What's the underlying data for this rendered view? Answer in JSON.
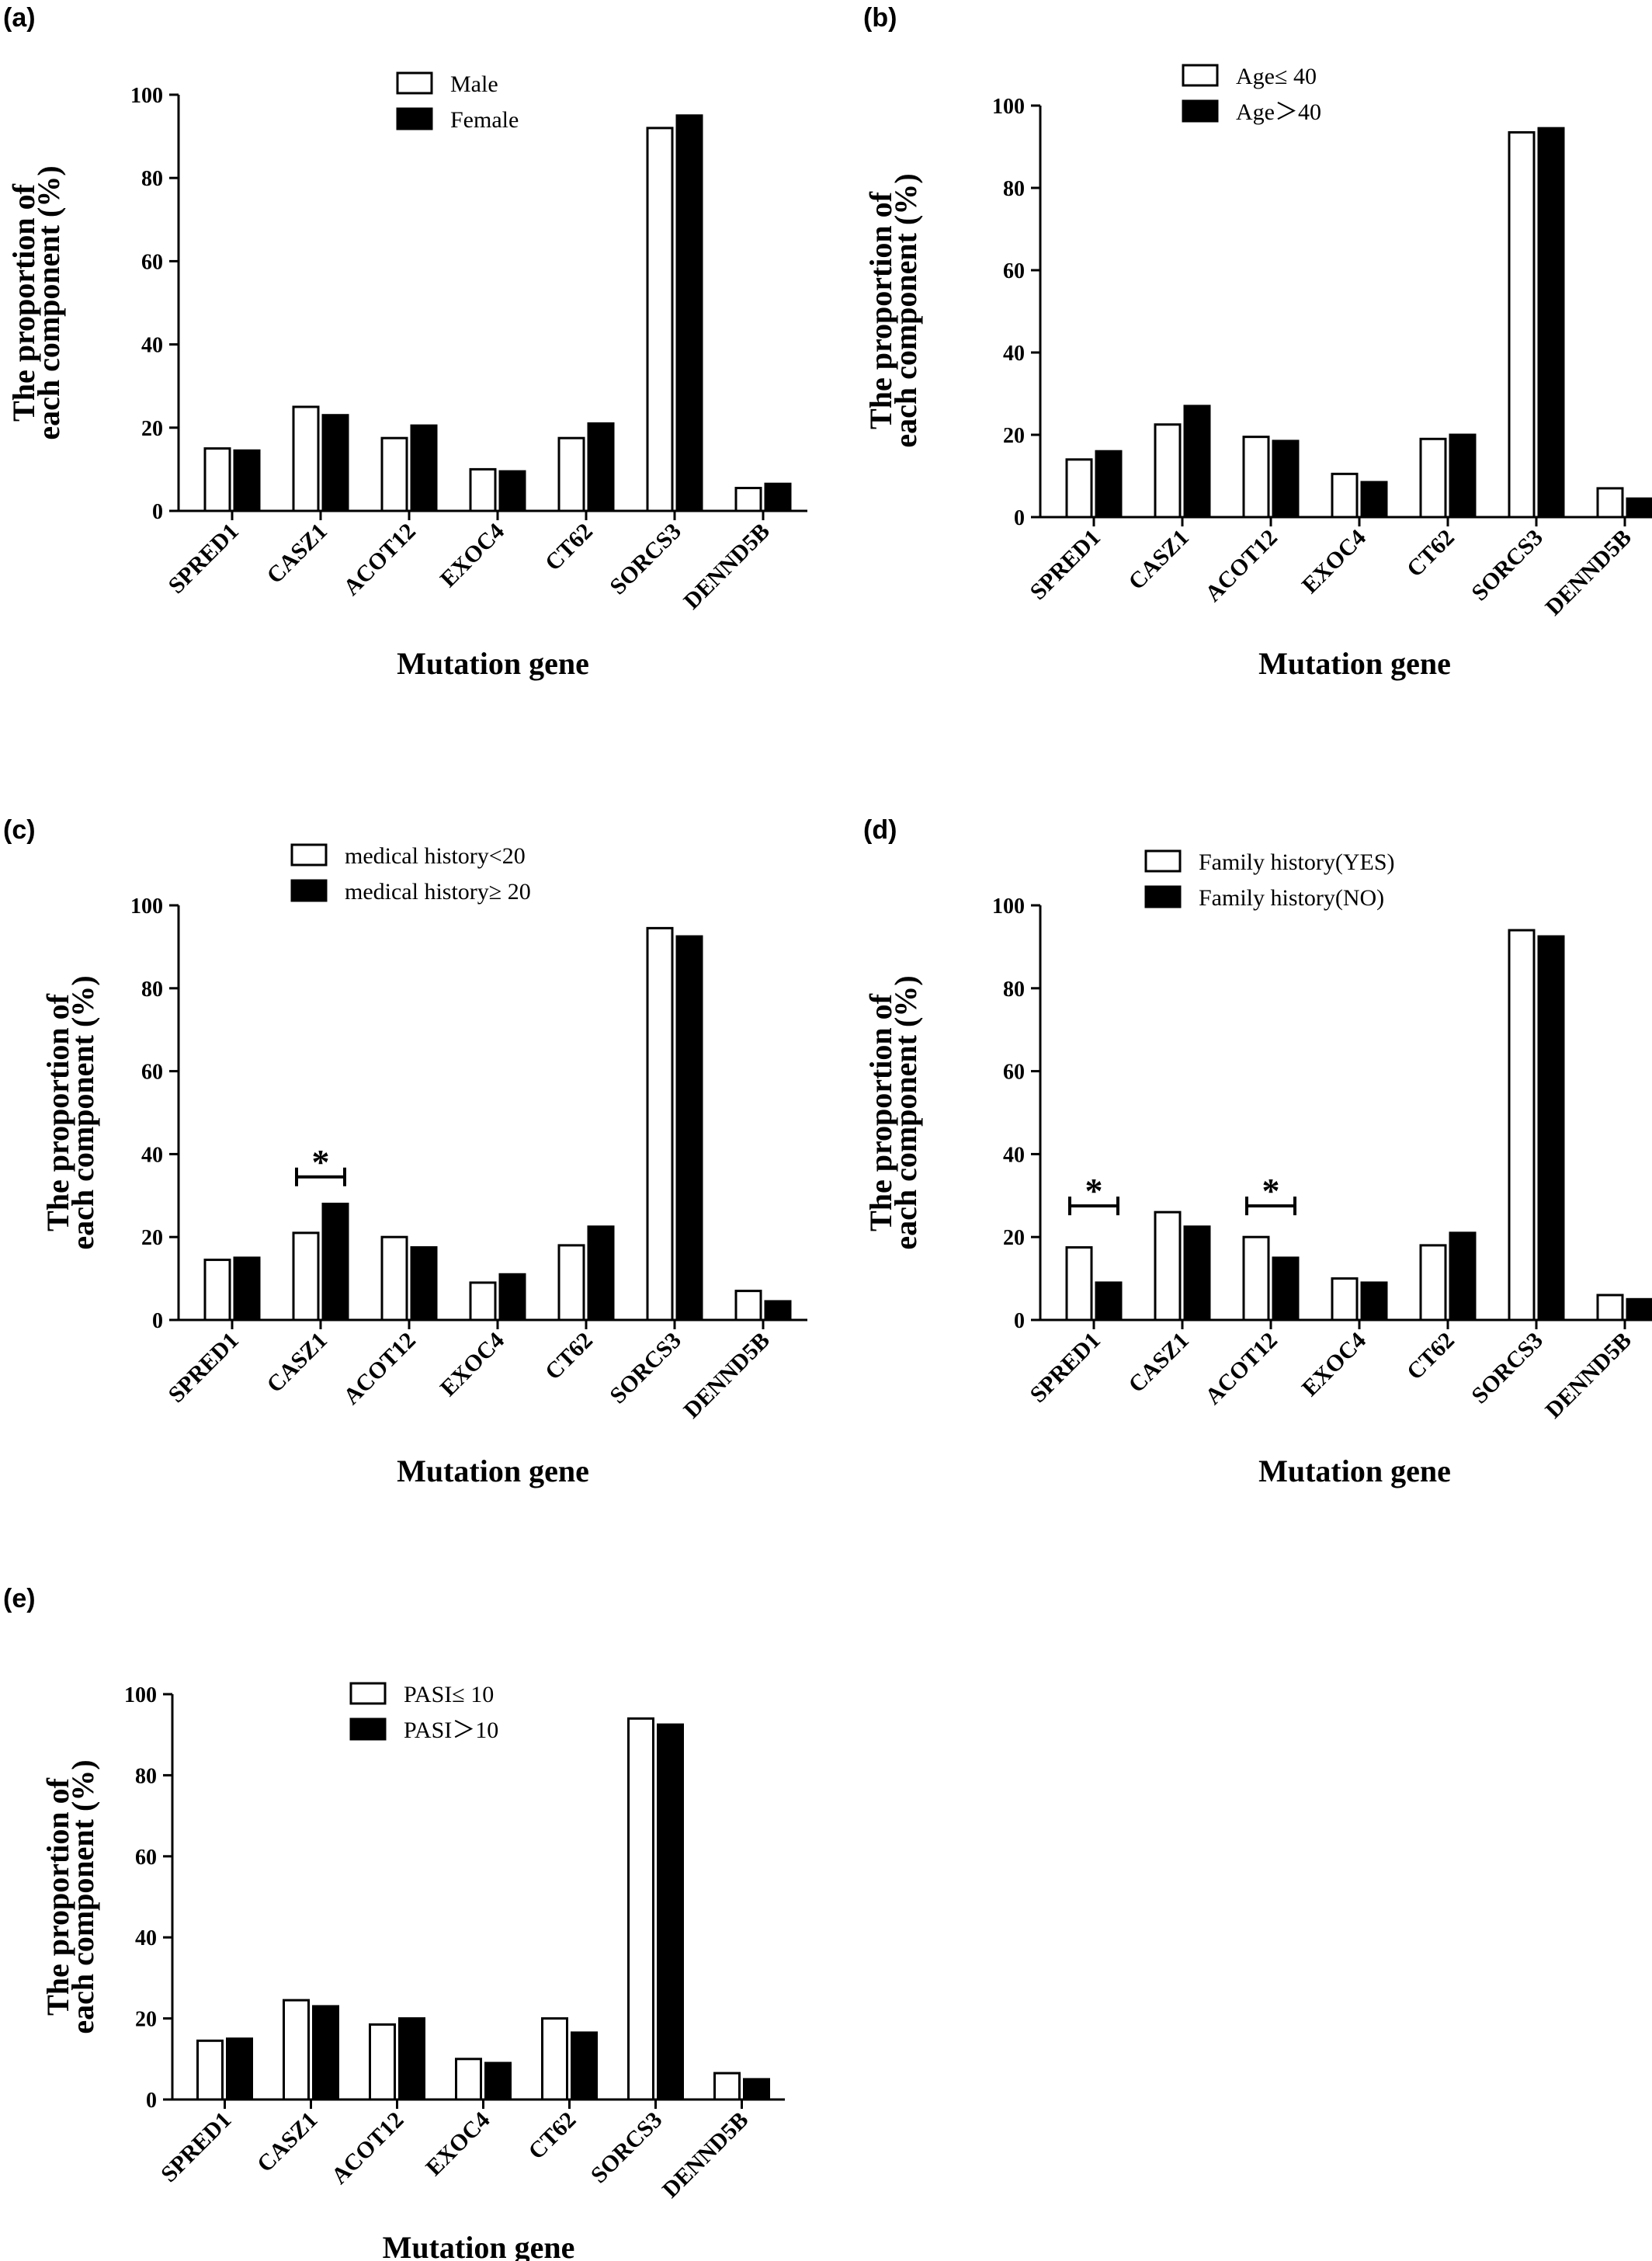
{
  "chart_data": [
    {
      "panel": "(a)",
      "type": "bar",
      "categories": [
        "SPRED1",
        "CASZ1",
        "ACOT12",
        "EXOC4",
        "CT62",
        "SORCS3",
        "DENND5B"
      ],
      "series": [
        {
          "name": "Male",
          "fill": "#ffffff",
          "values": [
            15,
            25,
            17.5,
            10,
            17.5,
            92,
            5.5
          ]
        },
        {
          "name": "Female",
          "fill": "#000000",
          "values": [
            14.5,
            23,
            20.5,
            9.5,
            21,
            95,
            6.5
          ]
        }
      ],
      "ylim": [
        0,
        100
      ],
      "yticks": [
        "0",
        "20",
        "40",
        "60",
        "80",
        "100"
      ],
      "xlabel": "Mutation gene",
      "ylabel_lines": [
        "The proportion of",
        "each component (%)"
      ],
      "legend_position": "top-center",
      "significance": []
    },
    {
      "panel": "(b)",
      "type": "bar",
      "categories": [
        "SPRED1",
        "CASZ1",
        "ACOT12",
        "EXOC4",
        "CT62",
        "SORCS3",
        "DENND5B"
      ],
      "series": [
        {
          "name": "Age≤ 40",
          "fill": "#ffffff",
          "values": [
            14,
            22.5,
            19.5,
            10.5,
            19,
            93.5,
            7
          ]
        },
        {
          "name": "Age＞40",
          "fill": "#000000",
          "values": [
            16,
            27,
            18.5,
            8.5,
            20,
            94.5,
            4.5
          ]
        }
      ],
      "ylim": [
        0,
        100
      ],
      "yticks": [
        "0",
        "20",
        "40",
        "60",
        "80",
        "100"
      ],
      "xlabel": "Mutation gene",
      "ylabel_lines": [
        "The proportion of",
        "each component (%)"
      ],
      "legend_position": "top-center",
      "significance": []
    },
    {
      "panel": "(c)",
      "type": "bar",
      "categories": [
        "SPRED1",
        "CASZ1",
        "ACOT12",
        "EXOC4",
        "CT62",
        "SORCS3",
        "DENND5B"
      ],
      "series": [
        {
          "name": "medical history<20",
          "fill": "#ffffff",
          "values": [
            14.5,
            21,
            20,
            9,
            18,
            94.5,
            7
          ]
        },
        {
          "name": "medical history≥ 20",
          "fill": "#000000",
          "values": [
            15,
            28,
            17.5,
            11,
            22.5,
            92.5,
            4.5
          ]
        }
      ],
      "ylim": [
        0,
        100
      ],
      "yticks": [
        "0",
        "20",
        "40",
        "60",
        "80",
        "100"
      ],
      "xlabel": "Mutation gene",
      "ylabel_lines": [
        "The proportion of",
        "each component (%)"
      ],
      "legend_position": "top-center",
      "significance": [
        {
          "category": "CASZ1",
          "label": "*",
          "level": 34.5
        }
      ]
    },
    {
      "panel": "(d)",
      "type": "bar",
      "categories": [
        "SPRED1",
        "CASZ1",
        "ACOT12",
        "EXOC4",
        "CT62",
        "SORCS3",
        "DENND5B"
      ],
      "series": [
        {
          "name": "Family history(YES)",
          "fill": "#ffffff",
          "values": [
            17.5,
            26,
            20,
            10,
            18,
            94,
            6
          ]
        },
        {
          "name": "Family history(NO)",
          "fill": "#000000",
          "values": [
            9,
            22.5,
            15,
            9,
            21,
            92.5,
            5
          ]
        }
      ],
      "ylim": [
        0,
        100
      ],
      "yticks": [
        "0",
        "20",
        "40",
        "60",
        "80",
        "100"
      ],
      "xlabel": "Mutation gene",
      "ylabel_lines": [
        "The proportion of",
        "each component (%)"
      ],
      "legend_position": "top-center",
      "significance": [
        {
          "category": "SPRED1",
          "label": "*",
          "level": 27.5
        },
        {
          "category": "ACOT12",
          "label": "*",
          "level": 27.5
        }
      ]
    },
    {
      "panel": "(e)",
      "type": "bar",
      "categories": [
        "SPRED1",
        "CASZ1",
        "ACOT12",
        "EXOC4",
        "CT62",
        "SORCS3",
        "DENND5B"
      ],
      "series": [
        {
          "name": "PASI≤ 10",
          "fill": "#ffffff",
          "values": [
            14.5,
            24.5,
            18.5,
            10,
            20,
            94,
            6.5
          ]
        },
        {
          "name": "PASI＞10",
          "fill": "#000000",
          "values": [
            15,
            23,
            20,
            9,
            16.5,
            92.5,
            5
          ]
        }
      ],
      "ylim": [
        0,
        100
      ],
      "yticks": [
        "0",
        "20",
        "40",
        "60",
        "80",
        "100"
      ],
      "xlabel": "Mutation gene",
      "ylabel_lines": [
        "The proportion of",
        "each component (%)"
      ],
      "legend_position": "top-center",
      "significance": []
    }
  ]
}
